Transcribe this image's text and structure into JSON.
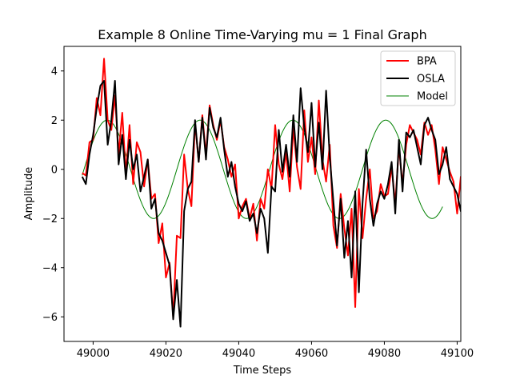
{
  "chart_data": {
    "type": "line",
    "title": "Example 8 Online Time-Varying mu = 1 Final Graph",
    "xlabel": "Time Steps",
    "ylabel": "Amplitude",
    "xlim": [
      48992,
      49101
    ],
    "ylim": [
      -7.0,
      5.0
    ],
    "xticks": [
      49000,
      49020,
      49040,
      49060,
      49080,
      49100
    ],
    "yticks": [
      -6,
      -4,
      -2,
      0,
      2,
      4
    ],
    "xtick_labels": [
      "49000",
      "49020",
      "49040",
      "49060",
      "49080",
      "49100"
    ],
    "ytick_labels": [
      "−6",
      "−4",
      "−2",
      "0",
      "2",
      "4"
    ],
    "grid": false,
    "legend_position": "top-right",
    "x_start": 48997,
    "series": [
      {
        "name": "BPA",
        "color": "#ff0000",
        "style": "thick",
        "values": [
          -0.15,
          -0.25,
          1.1,
          1.2,
          2.9,
          2.2,
          4.5,
          2.0,
          1.6,
          3.0,
          0.6,
          2.3,
          -0.2,
          1.8,
          -0.6,
          1.1,
          0.7,
          -0.7,
          0.4,
          -1.2,
          -1.0,
          -3.0,
          -2.2,
          -4.4,
          -3.8,
          -6.0,
          -2.7,
          -2.8,
          0.6,
          -0.8,
          -1.5,
          1.9,
          0.3,
          2.2,
          0.6,
          2.6,
          1.8,
          1.2,
          2.0,
          0.9,
          0.4,
          -0.3,
          0.2,
          -2.0,
          -1.5,
          -1.2,
          -2.0,
          -1.4,
          -2.9,
          -1.2,
          -1.6,
          0.0,
          -0.8,
          1.8,
          0.2,
          -0.4,
          0.7,
          -0.9,
          1.7,
          0.1,
          -0.8,
          2.4,
          0.3,
          1.3,
          -0.2,
          2.8,
          0.4,
          -0.5,
          1.0,
          -2.3,
          -3.2,
          -1.0,
          -2.4,
          -3.5,
          -1.6,
          -5.6,
          -0.8,
          -2.8,
          -1.2,
          0.0,
          -2.0,
          -1.7,
          -0.6,
          -1.1,
          -1.0,
          0.1,
          -1.4,
          0.9,
          -0.6,
          1.0,
          1.8,
          1.5,
          1.2,
          0.6,
          1.9,
          1.4,
          1.8,
          0.8,
          -0.6,
          0.9,
          0.4,
          -0.1,
          -0.5,
          -1.8,
          -0.3,
          -0.2,
          -1.2,
          0.0,
          -0.9,
          -0.8
        ]
      },
      {
        "name": "OSLA",
        "color": "#000000",
        "style": "thick",
        "values": [
          -0.3,
          -0.6,
          0.6,
          1.4,
          2.5,
          3.4,
          3.6,
          1.0,
          2.0,
          3.6,
          0.2,
          1.4,
          -0.4,
          1.2,
          0.0,
          0.6,
          -0.9,
          -0.3,
          0.4,
          -1.6,
          -1.2,
          -2.6,
          -2.9,
          -3.4,
          -3.9,
          -6.1,
          -4.5,
          -6.4,
          -1.7,
          -0.8,
          -0.5,
          2.0,
          0.3,
          2.1,
          0.4,
          2.5,
          1.7,
          1.3,
          2.1,
          0.8,
          -0.3,
          0.3,
          -0.7,
          -1.4,
          -1.7,
          -1.3,
          -2.1,
          -1.8,
          -2.6,
          -1.6,
          -2.0,
          -3.4,
          -0.7,
          -0.9,
          1.6,
          -0.1,
          1.0,
          -0.3,
          2.2,
          0.3,
          3.3,
          1.7,
          0.7,
          2.7,
          0.1,
          1.9,
          0.0,
          3.2,
          0.5,
          -1.3,
          -3.1,
          -1.2,
          -3.6,
          -2.1,
          -4.4,
          -0.9,
          -5.0,
          -1.4,
          0.8,
          -1.2,
          -2.3,
          -1.4,
          -0.9,
          -1.2,
          -0.6,
          0.3,
          -1.8,
          1.2,
          -0.9,
          1.5,
          1.3,
          1.6,
          0.9,
          0.2,
          1.8,
          2.1,
          1.6,
          1.2,
          -0.2,
          0.2,
          0.9,
          -0.4,
          -0.7,
          -1.0,
          -1.7,
          -2.0,
          -2.6,
          -3.1,
          -1.2,
          -0.4,
          -1.4
        ]
      },
      {
        "name": "Model",
        "color": "#008000",
        "style": "thin",
        "model": {
          "amplitude": 2.0,
          "period": 25.5,
          "zero_cross_x": 48997.5
        }
      }
    ]
  }
}
